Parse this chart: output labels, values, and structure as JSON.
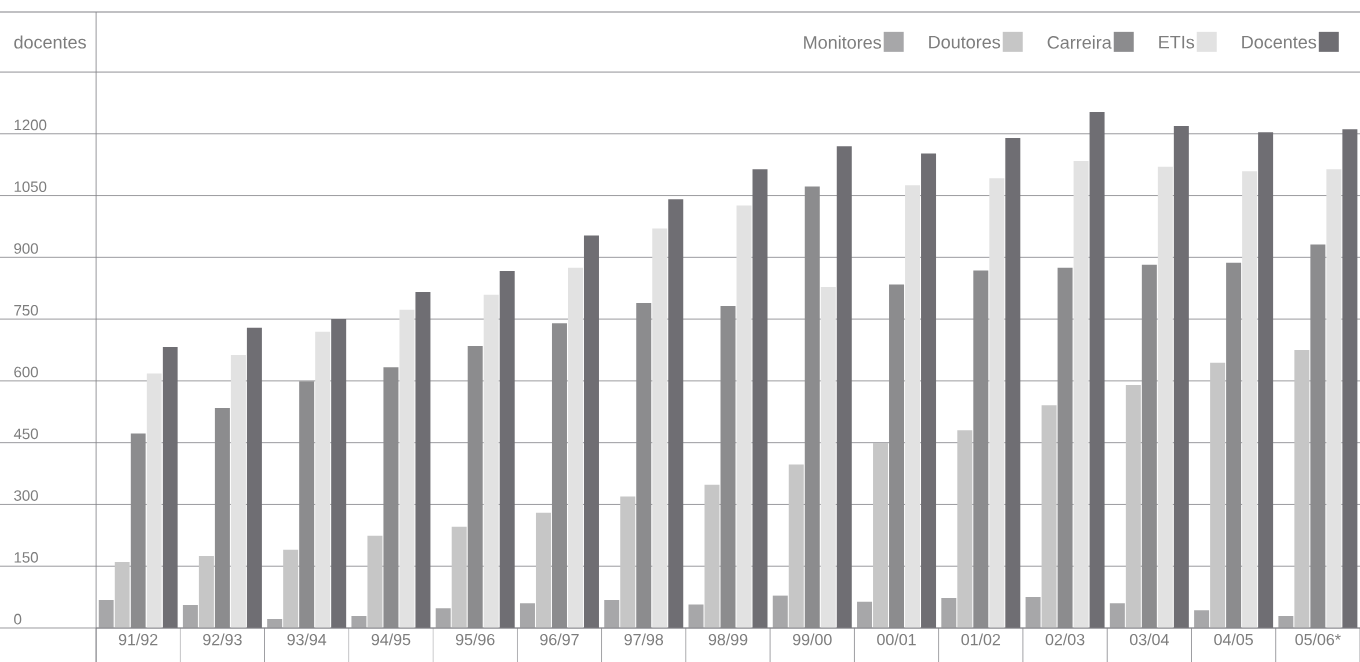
{
  "chart_data": {
    "type": "bar",
    "ylabel": "docentes",
    "categories": [
      "91/92",
      "92/93",
      "93/94",
      "94/95",
      "95/96",
      "96/97",
      "97/98",
      "98/99",
      "99/00",
      "00/01",
      "01/02",
      "02/03",
      "03/04",
      "04/05",
      "05/06*"
    ],
    "series": [
      {
        "name": "Monitores",
        "color": "#a7a7a9",
        "values": [
          68,
          56,
          22,
          29,
          48,
          60,
          68,
          57,
          79,
          64,
          73,
          75,
          60,
          43,
          29
        ]
      },
      {
        "name": "Doutores",
        "color": "#c6c6c6",
        "values": [
          160,
          175,
          190,
          224,
          246,
          280,
          319,
          348,
          397,
          449,
          480,
          541,
          590,
          644,
          675
        ]
      },
      {
        "name": "Carreira",
        "color": "#8c8c8e",
        "values": [
          472,
          534,
          599,
          633,
          685,
          740,
          789,
          782,
          1072,
          834,
          868,
          875,
          882,
          887,
          931
        ]
      },
      {
        "name": "ETIs",
        "color": "#e2e2e2",
        "values": [
          618,
          663,
          719,
          773,
          809,
          875,
          970,
          1026,
          828,
          1075,
          1092,
          1134,
          1120,
          1109,
          1114
        ]
      },
      {
        "name": "Docentes",
        "color": "#6f6e73",
        "values": [
          682,
          729,
          750,
          816,
          867,
          953,
          1041,
          1114,
          1170,
          1152,
          1190,
          1253,
          1219,
          1204,
          1211
        ]
      }
    ],
    "ylim": [
      0,
      1350
    ],
    "yticks": [
      0,
      150,
      300,
      450,
      600,
      750,
      900,
      1050,
      1200
    ],
    "grid": "y",
    "legend": "top right"
  }
}
